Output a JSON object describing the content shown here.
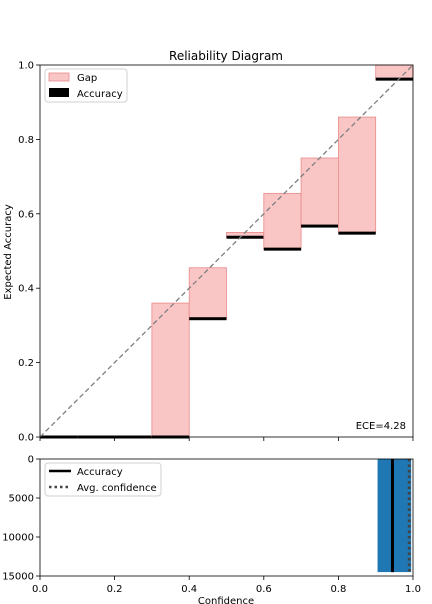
{
  "chart_data": [
    {
      "type": "bar",
      "title": "Reliability Diagram",
      "xlabel": "",
      "ylabel": "Expected Accuracy",
      "xlim": [
        0.0,
        1.0
      ],
      "ylim": [
        0.0,
        1.0
      ],
      "xticks": [
        "0.0",
        "0.2",
        "0.4",
        "0.6",
        "0.8",
        "1.0"
      ],
      "yticks": [
        "0.0",
        "0.2",
        "0.4",
        "0.6",
        "0.8",
        "1.0"
      ],
      "show_xtick_labels": false,
      "bin_width": 0.1,
      "bins": [
        {
          "lower": 0.0,
          "upper": 0.1,
          "confidence": 0.0,
          "accuracy": 0.0
        },
        {
          "lower": 0.1,
          "upper": 0.2,
          "confidence": 0.0,
          "accuracy": 0.0
        },
        {
          "lower": 0.2,
          "upper": 0.3,
          "confidence": 0.0,
          "accuracy": 0.0
        },
        {
          "lower": 0.3,
          "upper": 0.4,
          "confidence": 0.36,
          "accuracy": 0.0
        },
        {
          "lower": 0.4,
          "upper": 0.5,
          "confidence": 0.455,
          "accuracy": 0.318
        },
        {
          "lower": 0.5,
          "upper": 0.6,
          "confidence": 0.55,
          "accuracy": 0.537
        },
        {
          "lower": 0.6,
          "upper": 0.7,
          "confidence": 0.655,
          "accuracy": 0.505
        },
        {
          "lower": 0.7,
          "upper": 0.8,
          "confidence": 0.75,
          "accuracy": 0.567
        },
        {
          "lower": 0.8,
          "upper": 0.9,
          "confidence": 0.86,
          "accuracy": 0.548
        },
        {
          "lower": 0.9,
          "upper": 1.0,
          "confidence": 1.0,
          "accuracy": 0.962
        }
      ],
      "diagonal": {
        "from": [
          0.0,
          0.0
        ],
        "to": [
          1.0,
          1.0
        ],
        "style": "dashed",
        "color": "#7f7f7f"
      },
      "legend": {
        "position": "top-left",
        "entries": [
          {
            "label": "Gap",
            "color": "#f9c5c5",
            "edge": "#e88a8a"
          },
          {
            "label": "Accuracy",
            "color": "#000000"
          }
        ]
      },
      "annotation": "ECE=4.28",
      "colors": {
        "gap_fill": "#f9c5c5",
        "gap_edge": "#e88a8a",
        "accuracy": "#000000"
      }
    },
    {
      "type": "bar",
      "title": "",
      "xlabel": "Confidence",
      "ylabel": "",
      "xlim": [
        0.0,
        1.0
      ],
      "ylim": [
        15000,
        0
      ],
      "xticks": [
        "0.0",
        "0.2",
        "0.4",
        "0.6",
        "0.8",
        "1.0"
      ],
      "yticks": [
        "0",
        "5000",
        "10000",
        "15000"
      ],
      "ytick_values": [
        0,
        5000,
        10000,
        15000
      ],
      "bars": [
        {
          "x": 0.95,
          "width": 0.09,
          "value": 14500
        }
      ],
      "accuracy_line": 0.945,
      "avg_confidence_line": 0.99,
      "legend": {
        "position": "top-left",
        "entries": [
          {
            "label": "Accuracy",
            "style": "solid"
          },
          {
            "label": "Avg. confidence",
            "style": "dotted"
          }
        ]
      },
      "colors": {
        "bar": "#1f77b4",
        "line": "#000000",
        "dotted": "#444444"
      }
    }
  ]
}
